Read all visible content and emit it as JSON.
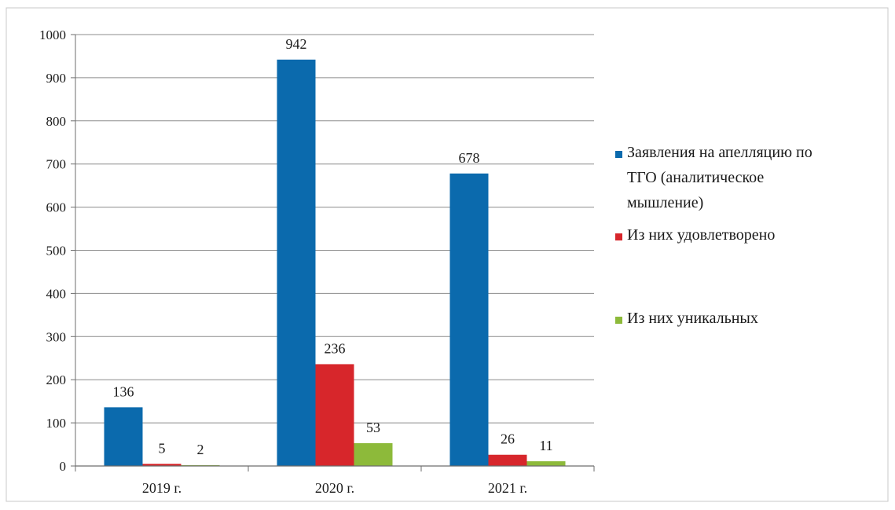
{
  "chart_data": {
    "type": "bar",
    "categories": [
      "2019 г.",
      "2020 г.",
      "2021 г."
    ],
    "series": [
      {
        "name": "Заявления на апелляцию по ТГО (аналитическое мышление)",
        "legend_lines": [
          "Заявления на апелляцию по",
          "ТГО (аналитическое",
          "мышление)"
        ],
        "color": "#0b6aad",
        "values": [
          136,
          942,
          678
        ]
      },
      {
        "name": "Из них удовлетворено",
        "legend_lines": [
          "Из них удовлетворено"
        ],
        "color": "#d7262b",
        "values": [
          5,
          236,
          26
        ]
      },
      {
        "name": "Из них уникальных",
        "legend_lines": [
          "Из них уникальных"
        ],
        "color": "#8dba3a",
        "values": [
          2,
          53,
          11
        ]
      }
    ],
    "ylim": [
      0,
      1000
    ],
    "yticks": [
      0,
      100,
      200,
      300,
      400,
      500,
      600,
      700,
      800,
      900,
      1000
    ],
    "grid": true,
    "legend_position": "right",
    "data_labels": true
  }
}
